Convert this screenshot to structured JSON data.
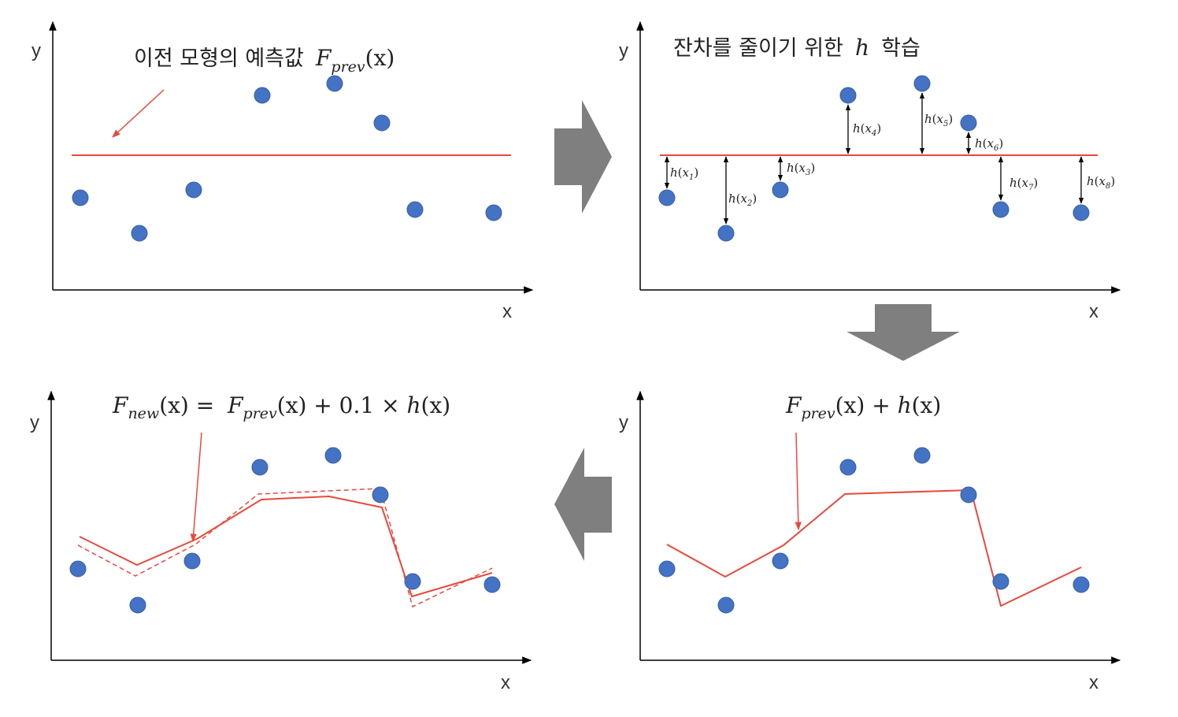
{
  "colors": {
    "point": "#4472C4",
    "point_stroke": "#3b5fa0",
    "line": "#E8493D",
    "axis": "#000000",
    "arrow_block": "#7f7f7f"
  },
  "axes": {
    "x_label": "x",
    "y_label": "y"
  },
  "panels": {
    "prev": {
      "title_ko": "이전 모형의 예측값",
      "title_math": {
        "F": "F",
        "sub": "prev",
        "arg": "(x)"
      },
      "fprev_level": 0
    },
    "residual": {
      "title_ko": "잔차를 줄이기 위한",
      "title_h": "h",
      "title_tail": "학습",
      "labels": [
        {
          "f": "h",
          "sub": "1"
        },
        {
          "f": "h",
          "sub": "2"
        },
        {
          "f": "h",
          "sub": "3"
        },
        {
          "f": "h",
          "sub": "4"
        },
        {
          "f": "h",
          "sub": "5"
        },
        {
          "f": "h",
          "sub": "6"
        },
        {
          "f": "h",
          "sub": "7"
        },
        {
          "f": "h",
          "sub": "8"
        }
      ]
    },
    "sum": {
      "formula": {
        "F": "F",
        "sub": "prev",
        "arg1": "(x) + ",
        "h": "h",
        "arg2": "(x)"
      }
    },
    "new": {
      "formula": {
        "F": "F",
        "sub_new": "new",
        "arg1": "(x) = ",
        "F2": "F",
        "sub_prev": "prev",
        "arg2": "(x) + 0.1 × ",
        "h": "h",
        "arg3": "(x)"
      }
    }
  },
  "chart_data": {
    "type": "scatter",
    "points_x": [
      1,
      2,
      3,
      4,
      5,
      6,
      7,
      8
    ],
    "points_y": [
      -0.5,
      -0.9,
      -0.4,
      0.7,
      0.85,
      0.4,
      -0.65,
      -0.7
    ],
    "fprev": 0,
    "h_values": [
      -0.5,
      -0.9,
      -0.4,
      0.7,
      0.85,
      0.4,
      -0.65,
      -0.7
    ],
    "fnew_learning_rate": 0.1
  }
}
